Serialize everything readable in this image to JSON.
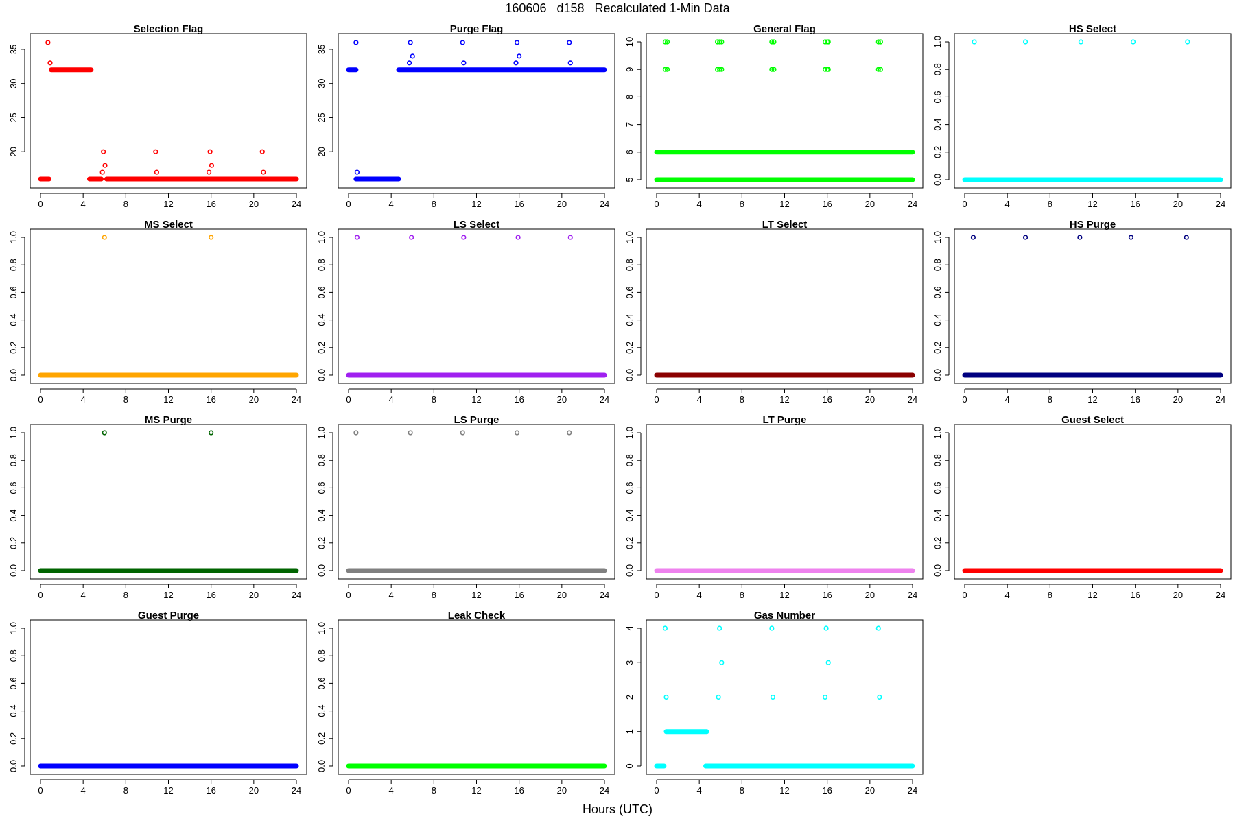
{
  "figure": {
    "title": "160606   d158   Recalculated 1-Min Data",
    "xlabel": "Hours (UTC)"
  },
  "chart_data": [
    {
      "type": "scatter",
      "title": "Selection Flag",
      "color": "#ff0000",
      "xlim": [
        0,
        24
      ],
      "ylim": [
        15.5,
        36.5
      ],
      "xticks": [
        0,
        4,
        8,
        12,
        16,
        20,
        24
      ],
      "yticks": [
        20,
        25,
        30,
        35
      ],
      "series": [
        {
          "x_start": 0.0,
          "x_end": 0.8,
          "y": 16
        },
        {
          "x_start": 1.0,
          "x_end": 4.75,
          "y": 32
        },
        {
          "x_start": 4.6,
          "x_end": 5.7,
          "y": 16
        },
        {
          "x_start": 6.2,
          "x_end": 24.0,
          "y": 16
        }
      ],
      "points": [
        {
          "x": 0.7,
          "y": 36
        },
        {
          "x": 0.9,
          "y": 33
        },
        {
          "x": 5.8,
          "y": 17
        },
        {
          "x": 5.9,
          "y": 20
        },
        {
          "x": 6.05,
          "y": 18
        },
        {
          "x": 10.8,
          "y": 20
        },
        {
          "x": 10.9,
          "y": 17
        },
        {
          "x": 15.8,
          "y": 17
        },
        {
          "x": 15.9,
          "y": 20
        },
        {
          "x": 16.05,
          "y": 18
        },
        {
          "x": 20.8,
          "y": 20
        },
        {
          "x": 20.9,
          "y": 17
        }
      ]
    },
    {
      "type": "scatter",
      "title": "Purge Flag",
      "color": "#0000ff",
      "xlim": [
        0,
        24
      ],
      "ylim": [
        15.5,
        36.5
      ],
      "xticks": [
        0,
        4,
        8,
        12,
        16,
        20,
        24
      ],
      "yticks": [
        20,
        25,
        30,
        35
      ],
      "series": [
        {
          "x_start": 0.0,
          "x_end": 0.7,
          "y": 32
        },
        {
          "x_start": 0.7,
          "x_end": 4.7,
          "y": 16
        },
        {
          "x_start": 4.7,
          "x_end": 24.0,
          "y": 32
        }
      ],
      "points": [
        {
          "x": 0.7,
          "y": 36
        },
        {
          "x": 0.8,
          "y": 17
        },
        {
          "x": 5.7,
          "y": 33
        },
        {
          "x": 5.8,
          "y": 36
        },
        {
          "x": 6.0,
          "y": 34
        },
        {
          "x": 10.7,
          "y": 36
        },
        {
          "x": 10.8,
          "y": 33
        },
        {
          "x": 15.7,
          "y": 33
        },
        {
          "x": 15.8,
          "y": 36
        },
        {
          "x": 16.0,
          "y": 34
        },
        {
          "x": 20.7,
          "y": 36
        },
        {
          "x": 20.8,
          "y": 33
        }
      ]
    },
    {
      "type": "scatter",
      "title": "General Flag",
      "color": "#00ff00",
      "xlim": [
        0,
        24
      ],
      "ylim": [
        4.9,
        10.1
      ],
      "xticks": [
        0,
        4,
        8,
        12,
        16,
        20,
        24
      ],
      "yticks": [
        5,
        6,
        7,
        8,
        9,
        10
      ],
      "series": [
        {
          "x_start": 0.0,
          "x_end": 24.0,
          "y": 5
        },
        {
          "x_start": 0.0,
          "x_end": 24.0,
          "y": 6
        }
      ],
      "points": [
        {
          "x": 0.8,
          "y": 10
        },
        {
          "x": 1.0,
          "y": 10
        },
        {
          "x": 0.8,
          "y": 9
        },
        {
          "x": 1.0,
          "y": 9
        },
        {
          "x": 5.7,
          "y": 10
        },
        {
          "x": 5.9,
          "y": 10
        },
        {
          "x": 6.1,
          "y": 10
        },
        {
          "x": 5.7,
          "y": 9
        },
        {
          "x": 5.9,
          "y": 9
        },
        {
          "x": 6.1,
          "y": 9
        },
        {
          "x": 10.8,
          "y": 10
        },
        {
          "x": 11.0,
          "y": 10
        },
        {
          "x": 10.8,
          "y": 9
        },
        {
          "x": 11.0,
          "y": 9
        },
        {
          "x": 15.8,
          "y": 10
        },
        {
          "x": 16.0,
          "y": 10
        },
        {
          "x": 16.1,
          "y": 10
        },
        {
          "x": 15.8,
          "y": 9
        },
        {
          "x": 16.0,
          "y": 9
        },
        {
          "x": 16.1,
          "y": 9
        },
        {
          "x": 20.8,
          "y": 10
        },
        {
          "x": 21.0,
          "y": 10
        },
        {
          "x": 20.8,
          "y": 9
        },
        {
          "x": 21.0,
          "y": 9
        }
      ]
    },
    {
      "type": "scatter",
      "title": "HS Select",
      "color": "#00ffff",
      "xlim": [
        0,
        24
      ],
      "ylim": [
        -0.02,
        1.02
      ],
      "xticks": [
        0,
        4,
        8,
        12,
        16,
        20,
        24
      ],
      "yticks": [
        0.0,
        0.2,
        0.4,
        0.6,
        0.8,
        1.0
      ],
      "series": [
        {
          "x_start": 0.0,
          "x_end": 24.0,
          "y": 0
        }
      ],
      "points": [
        {
          "x": 0.9,
          "y": 1
        },
        {
          "x": 5.7,
          "y": 1
        },
        {
          "x": 10.9,
          "y": 1
        },
        {
          "x": 15.8,
          "y": 1
        },
        {
          "x": 20.9,
          "y": 1
        }
      ]
    },
    {
      "type": "scatter",
      "title": "MS Select",
      "color": "#ffa500",
      "xlim": [
        0,
        24
      ],
      "ylim": [
        -0.02,
        1.02
      ],
      "xticks": [
        0,
        4,
        8,
        12,
        16,
        20,
        24
      ],
      "yticks": [
        0.0,
        0.2,
        0.4,
        0.6,
        0.8,
        1.0
      ],
      "series": [
        {
          "x_start": 0.0,
          "x_end": 24.0,
          "y": 0
        }
      ],
      "points": [
        {
          "x": 6.0,
          "y": 1
        },
        {
          "x": 16.0,
          "y": 1
        }
      ]
    },
    {
      "type": "scatter",
      "title": "LS Select",
      "color": "#a020f0",
      "xlim": [
        0,
        24
      ],
      "ylim": [
        -0.02,
        1.02
      ],
      "xticks": [
        0,
        4,
        8,
        12,
        16,
        20,
        24
      ],
      "yticks": [
        0.0,
        0.2,
        0.4,
        0.6,
        0.8,
        1.0
      ],
      "series": [
        {
          "x_start": 0.0,
          "x_end": 24.0,
          "y": 0
        }
      ],
      "points": [
        {
          "x": 0.8,
          "y": 1
        },
        {
          "x": 5.9,
          "y": 1
        },
        {
          "x": 10.8,
          "y": 1
        },
        {
          "x": 15.9,
          "y": 1
        },
        {
          "x": 20.8,
          "y": 1
        }
      ]
    },
    {
      "type": "scatter",
      "title": "LT Select",
      "color": "#8b0000",
      "xlim": [
        0,
        24
      ],
      "ylim": [
        -0.02,
        1.02
      ],
      "xticks": [
        0,
        4,
        8,
        12,
        16,
        20,
        24
      ],
      "yticks": [
        0.0,
        0.2,
        0.4,
        0.6,
        0.8,
        1.0
      ],
      "series": [
        {
          "x_start": 0.0,
          "x_end": 24.0,
          "y": 0
        }
      ],
      "points": []
    },
    {
      "type": "scatter",
      "title": "HS Purge",
      "color": "#000080",
      "xlim": [
        0,
        24
      ],
      "ylim": [
        -0.02,
        1.02
      ],
      "xticks": [
        0,
        4,
        8,
        12,
        16,
        20,
        24
      ],
      "yticks": [
        0.0,
        0.2,
        0.4,
        0.6,
        0.8,
        1.0
      ],
      "series": [
        {
          "x_start": 0.0,
          "x_end": 24.0,
          "y": 0
        }
      ],
      "points": [
        {
          "x": 0.8,
          "y": 1
        },
        {
          "x": 5.7,
          "y": 1
        },
        {
          "x": 10.8,
          "y": 1
        },
        {
          "x": 15.6,
          "y": 1
        },
        {
          "x": 20.8,
          "y": 1
        }
      ]
    },
    {
      "type": "scatter",
      "title": "MS Purge",
      "color": "#006400",
      "xlim": [
        0,
        24
      ],
      "ylim": [
        -0.02,
        1.02
      ],
      "xticks": [
        0,
        4,
        8,
        12,
        16,
        20,
        24
      ],
      "yticks": [
        0.0,
        0.2,
        0.4,
        0.6,
        0.8,
        1.0
      ],
      "series": [
        {
          "x_start": 0.0,
          "x_end": 24.0,
          "y": 0
        }
      ],
      "points": [
        {
          "x": 6.0,
          "y": 1
        },
        {
          "x": 16.0,
          "y": 1
        }
      ]
    },
    {
      "type": "scatter",
      "title": "LS Purge",
      "color": "#808080",
      "xlim": [
        0,
        24
      ],
      "ylim": [
        -0.02,
        1.02
      ],
      "xticks": [
        0,
        4,
        8,
        12,
        16,
        20,
        24
      ],
      "yticks": [
        0.0,
        0.2,
        0.4,
        0.6,
        0.8,
        1.0
      ],
      "series": [
        {
          "x_start": 0.0,
          "x_end": 24.0,
          "y": 0
        }
      ],
      "points": [
        {
          "x": 0.7,
          "y": 1
        },
        {
          "x": 5.8,
          "y": 1
        },
        {
          "x": 10.7,
          "y": 1
        },
        {
          "x": 15.8,
          "y": 1
        },
        {
          "x": 20.7,
          "y": 1
        }
      ]
    },
    {
      "type": "scatter",
      "title": "LT Purge",
      "color": "#ee82ee",
      "xlim": [
        0,
        24
      ],
      "ylim": [
        -0.02,
        1.02
      ],
      "xticks": [
        0,
        4,
        8,
        12,
        16,
        20,
        24
      ],
      "yticks": [
        0.0,
        0.2,
        0.4,
        0.6,
        0.8,
        1.0
      ],
      "series": [
        {
          "x_start": 0.0,
          "x_end": 24.0,
          "y": 0
        }
      ],
      "points": []
    },
    {
      "type": "scatter",
      "title": "Guest Select",
      "color": "#ff0000",
      "xlim": [
        0,
        24
      ],
      "ylim": [
        -0.02,
        1.02
      ],
      "xticks": [
        0,
        4,
        8,
        12,
        16,
        20,
        24
      ],
      "yticks": [
        0.0,
        0.2,
        0.4,
        0.6,
        0.8,
        1.0
      ],
      "series": [
        {
          "x_start": 0.0,
          "x_end": 24.0,
          "y": 0
        }
      ],
      "points": []
    },
    {
      "type": "scatter",
      "title": "Guest Purge",
      "color": "#0000ff",
      "xlim": [
        0,
        24
      ],
      "ylim": [
        -0.02,
        1.02
      ],
      "xticks": [
        0,
        4,
        8,
        12,
        16,
        20,
        24
      ],
      "yticks": [
        0.0,
        0.2,
        0.4,
        0.6,
        0.8,
        1.0
      ],
      "series": [
        {
          "x_start": 0.0,
          "x_end": 24.0,
          "y": 0
        }
      ],
      "points": []
    },
    {
      "type": "scatter",
      "title": "Leak Check",
      "color": "#00ff00",
      "xlim": [
        0,
        24
      ],
      "ylim": [
        -0.02,
        1.02
      ],
      "xticks": [
        0,
        4,
        8,
        12,
        16,
        20,
        24
      ],
      "yticks": [
        0.0,
        0.2,
        0.4,
        0.6,
        0.8,
        1.0
      ],
      "series": [
        {
          "x_start": 0.0,
          "x_end": 24.0,
          "y": 0
        }
      ],
      "points": []
    },
    {
      "type": "scatter",
      "title": "Gas Number",
      "color": "#00ffff",
      "xlim": [
        0,
        24
      ],
      "ylim": [
        -0.08,
        4.08
      ],
      "xticks": [
        0,
        4,
        8,
        12,
        16,
        20,
        24
      ],
      "yticks": [
        0,
        1,
        2,
        3,
        4
      ],
      "series": [
        {
          "x_start": 0.0,
          "x_end": 0.7,
          "y": 0
        },
        {
          "x_start": 0.9,
          "x_end": 4.7,
          "y": 1
        },
        {
          "x_start": 4.6,
          "x_end": 24.0,
          "y": 0
        }
      ],
      "points": [
        {
          "x": 0.8,
          "y": 4
        },
        {
          "x": 0.9,
          "y": 2
        },
        {
          "x": 5.8,
          "y": 2
        },
        {
          "x": 5.9,
          "y": 4
        },
        {
          "x": 6.1,
          "y": 3
        },
        {
          "x": 10.8,
          "y": 4
        },
        {
          "x": 10.9,
          "y": 2
        },
        {
          "x": 15.8,
          "y": 2
        },
        {
          "x": 15.9,
          "y": 4
        },
        {
          "x": 16.1,
          "y": 3
        },
        {
          "x": 20.8,
          "y": 4
        },
        {
          "x": 20.9,
          "y": 2
        }
      ]
    }
  ]
}
